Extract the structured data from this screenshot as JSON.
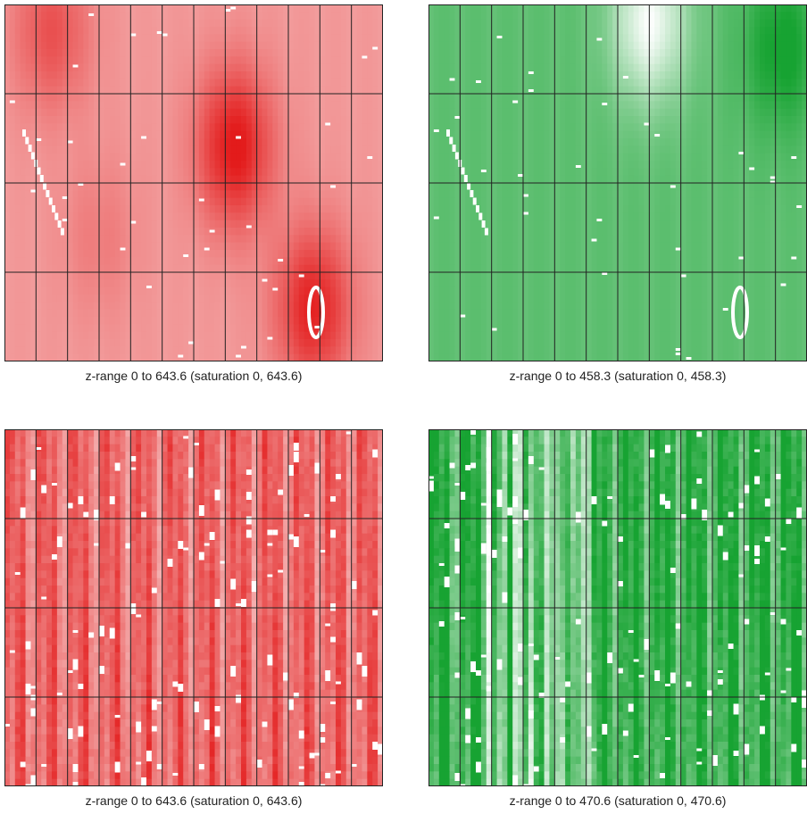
{
  "chart_data": [
    {
      "type": "heatmap",
      "title": "",
      "caption": "z-range 0 to 643.6 (saturation 0, 643.6)",
      "z_range": [
        0,
        643.6
      ],
      "saturation": [
        0,
        643.6
      ],
      "rows": 4,
      "cols": 12,
      "color_low": "#f7c5c5",
      "color_high": "#e31b1b",
      "missing_color": "#ffffff",
      "pattern": "smooth",
      "hotspots": [
        {
          "col": 1.5,
          "row": 0.3,
          "z": 420
        },
        {
          "col": 7.3,
          "row": 1.6,
          "z": 643.6
        },
        {
          "col": 9.8,
          "row": 3.4,
          "z": 600
        },
        {
          "col": 3.0,
          "row": 2.6,
          "z": 260
        }
      ],
      "base_z": 150
    },
    {
      "type": "heatmap",
      "title": "",
      "caption": "z-range 0 to 458.3 (saturation 0, 458.3)",
      "z_range": [
        0,
        458.3
      ],
      "saturation": [
        0,
        458.3
      ],
      "rows": 4,
      "cols": 12,
      "color_low": "#ffffff",
      "color_high": "#17a332",
      "missing_color": "#ffffff",
      "pattern": "smooth-inverse",
      "hotspots": [
        {
          "col": 7.0,
          "row": 0.2,
          "z": 0
        },
        {
          "col": 11.2,
          "row": 0.5,
          "z": 458.3
        }
      ],
      "base_z": 300
    },
    {
      "type": "heatmap",
      "title": "",
      "caption": "z-range 0 to 643.6 (saturation 0, 643.6)",
      "z_range": [
        0,
        643.6
      ],
      "saturation": [
        0,
        643.6
      ],
      "rows": 4,
      "cols": 12,
      "color_low": "#f6c0c0",
      "color_high": "#e31b1b",
      "missing_color": "#ffffff",
      "pattern": "stripes",
      "base_z": 330
    },
    {
      "type": "heatmap",
      "title": "",
      "caption": "z-range 0 to 470.6 (saturation 0, 470.6)",
      "z_range": [
        0,
        470.6
      ],
      "saturation": [
        0,
        470.6
      ],
      "rows": 4,
      "cols": 12,
      "color_low": "#ffffff",
      "color_high": "#17a332",
      "missing_color": "#ffffff",
      "pattern": "stripes-inverse",
      "base_z": 400
    }
  ]
}
